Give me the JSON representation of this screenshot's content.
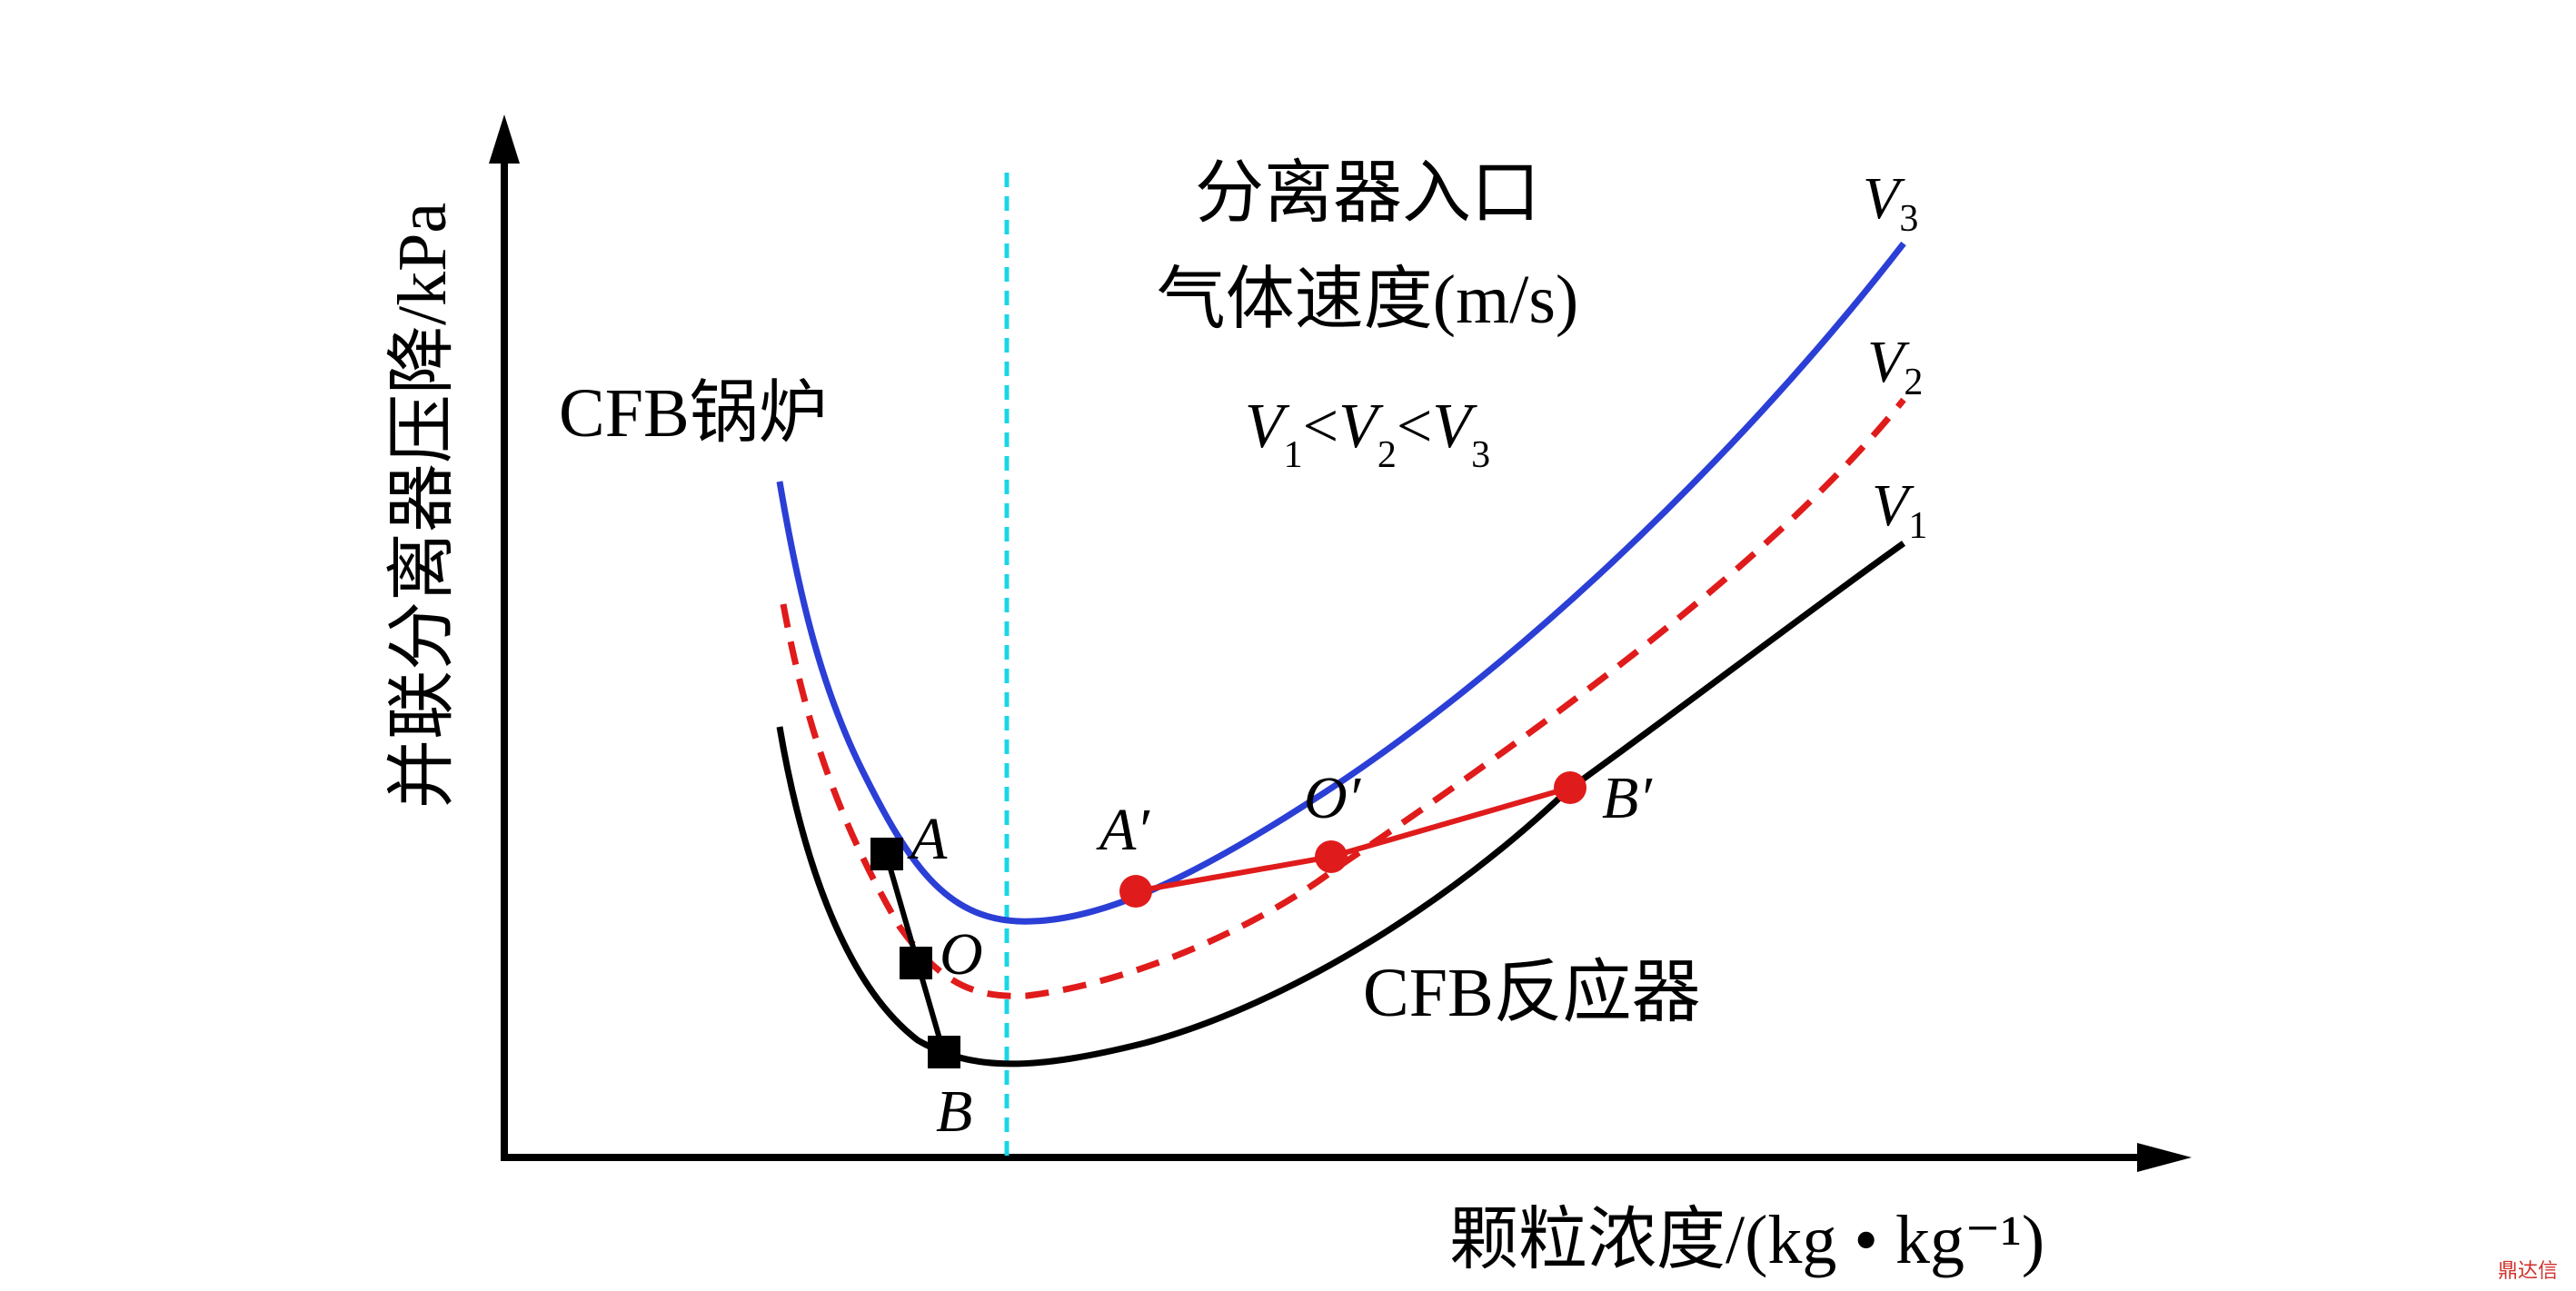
{
  "chart_data": {
    "type": "line",
    "title": "",
    "xlabel": "颗粒浓度/(kg • kg⁻¹)",
    "ylabel": "并联分离器压降/kPa",
    "ticks": "none",
    "grid": false,
    "legend": {
      "title_line1": "分离器入口",
      "title_line2": "气体速度(m/s)",
      "relation": "V₁<V₂<V₃"
    },
    "series": [
      {
        "name": "V3",
        "sub": "3",
        "color": "#2b3fd6",
        "style": "solid"
      },
      {
        "name": "V2",
        "sub": "2",
        "color": "#e01b1b",
        "style": "dashed"
      },
      {
        "name": "V1",
        "sub": "1",
        "color": "#000000",
        "style": "solid"
      }
    ],
    "regions": {
      "left": "CFB锅炉",
      "right": "CFB反应器"
    },
    "vertical_line": {
      "color": "#19d6e6",
      "style": "dashed"
    },
    "points_boiler": [
      {
        "label": "A",
        "series": "V3"
      },
      {
        "label": "O",
        "series": "V2"
      },
      {
        "label": "B",
        "series": "V1"
      }
    ],
    "points_reactor": [
      {
        "label": "A′",
        "series": "V3"
      },
      {
        "label": "O′",
        "series": "V2"
      },
      {
        "label": "B′",
        "series": "V1"
      }
    ]
  },
  "watermark": "鼎达信"
}
